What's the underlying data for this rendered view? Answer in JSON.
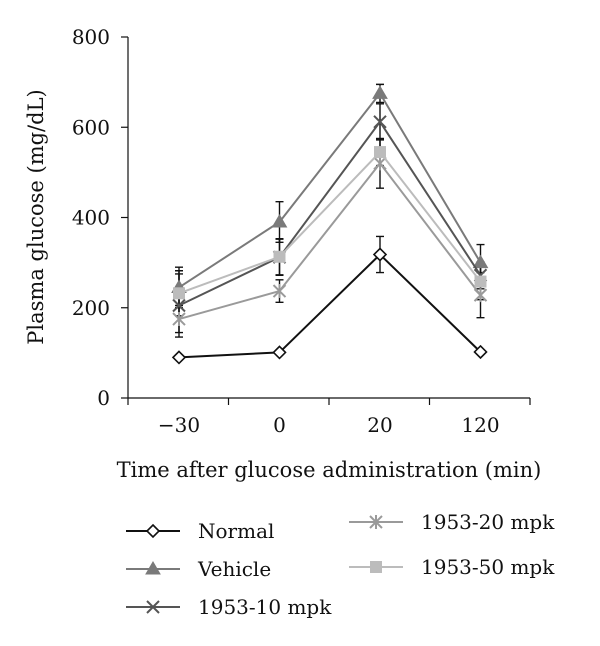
{
  "chart_data": {
    "type": "line",
    "categories": [
      "−30",
      "0",
      "20",
      "120"
    ],
    "xlabel": "Time after glucose administration (min)",
    "ylabel": "Plasma glucose (mg/dL)",
    "ylim": [
      0,
      800
    ],
    "yticks": [
      "0",
      "200",
      "400",
      "600",
      "800"
    ],
    "grid": false,
    "legend_position": "bottom",
    "series": [
      {
        "name": "Normal",
        "marker": "diamond-open",
        "color": "#111111",
        "values": [
          90,
          101,
          318,
          102
        ],
        "errors": [
          0,
          0,
          40,
          0
        ]
      },
      {
        "name": "Vehicle",
        "marker": "triangle",
        "color": "#7a7a7a",
        "values": [
          245,
          390,
          675,
          300
        ],
        "errors": [
          45,
          45,
          20,
          40
        ]
      },
      {
        "name": "1953-10 mpk",
        "marker": "x",
        "color": "#555555",
        "values": [
          205,
          312,
          612,
          272
        ],
        "errors": [
          70,
          40,
          40,
          30
        ]
      },
      {
        "name": "1953-20 mpk",
        "marker": "asterisk",
        "color": "#9a9a9a",
        "values": [
          175,
          237,
          520,
          228
        ],
        "errors": [
          30,
          25,
          55,
          50
        ]
      },
      {
        "name": "1953-50 mpk",
        "marker": "square",
        "color": "#bcbcbc",
        "values": [
          232,
          313,
          545,
          258
        ],
        "errors": [
          50,
          40,
          30,
          40
        ]
      }
    ]
  }
}
